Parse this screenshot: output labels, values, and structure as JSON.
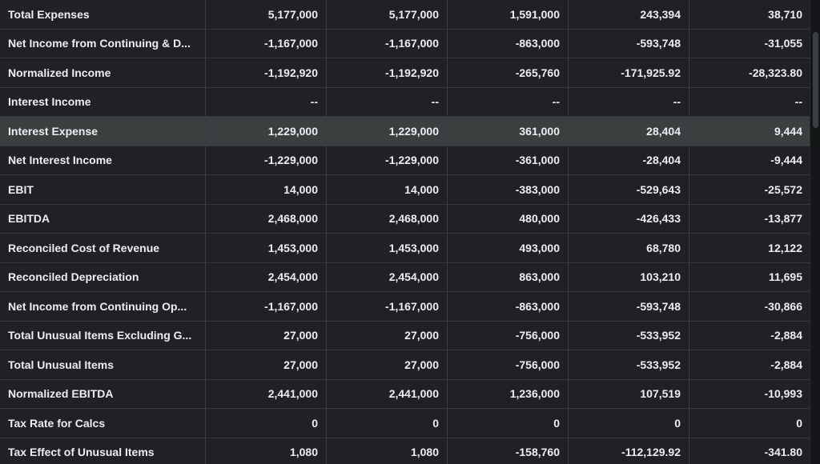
{
  "colors": {
    "background": "#1b1d21",
    "cell": "#1f2125",
    "highlight_row": "#3a403f",
    "text": "#eceef1",
    "border": "#3a3d42"
  },
  "rows": [
    {
      "label": "Total Expenses",
      "values": [
        "5,177,000",
        "5,177,000",
        "1,591,000",
        "243,394",
        "38,710"
      ],
      "highlight": false
    },
    {
      "label": "Net Income from Continuing & D...",
      "values": [
        "-1,167,000",
        "-1,167,000",
        "-863,000",
        "-593,748",
        "-31,055"
      ],
      "highlight": false
    },
    {
      "label": "Normalized Income",
      "values": [
        "-1,192,920",
        "-1,192,920",
        "-265,760",
        "-171,925.92",
        "-28,323.80"
      ],
      "highlight": false
    },
    {
      "label": "Interest Income",
      "values": [
        "--",
        "--",
        "--",
        "--",
        "--"
      ],
      "highlight": false
    },
    {
      "label": "Interest Expense",
      "values": [
        "1,229,000",
        "1,229,000",
        "361,000",
        "28,404",
        "9,444"
      ],
      "highlight": true
    },
    {
      "label": "Net Interest Income",
      "values": [
        "-1,229,000",
        "-1,229,000",
        "-361,000",
        "-28,404",
        "-9,444"
      ],
      "highlight": false
    },
    {
      "label": "EBIT",
      "values": [
        "14,000",
        "14,000",
        "-383,000",
        "-529,643",
        "-25,572"
      ],
      "highlight": false
    },
    {
      "label": "EBITDA",
      "values": [
        "2,468,000",
        "2,468,000",
        "480,000",
        "-426,433",
        "-13,877"
      ],
      "highlight": false
    },
    {
      "label": "Reconciled Cost of Revenue",
      "values": [
        "1,453,000",
        "1,453,000",
        "493,000",
        "68,780",
        "12,122"
      ],
      "highlight": false
    },
    {
      "label": "Reconciled Depreciation",
      "values": [
        "2,454,000",
        "2,454,000",
        "863,000",
        "103,210",
        "11,695"
      ],
      "highlight": false
    },
    {
      "label": "Net Income from Continuing Op...",
      "values": [
        "-1,167,000",
        "-1,167,000",
        "-863,000",
        "-593,748",
        "-30,866"
      ],
      "highlight": false
    },
    {
      "label": "Total Unusual Items Excluding G...",
      "values": [
        "27,000",
        "27,000",
        "-756,000",
        "-533,952",
        "-2,884"
      ],
      "highlight": false
    },
    {
      "label": "Total Unusual Items",
      "values": [
        "27,000",
        "27,000",
        "-756,000",
        "-533,952",
        "-2,884"
      ],
      "highlight": false
    },
    {
      "label": "Normalized EBITDA",
      "values": [
        "2,441,000",
        "2,441,000",
        "1,236,000",
        "107,519",
        "-10,993"
      ],
      "highlight": false
    },
    {
      "label": "Tax Rate for Calcs",
      "values": [
        "0",
        "0",
        "0",
        "0",
        "0"
      ],
      "highlight": false
    },
    {
      "label": "Tax Effect of Unusual Items",
      "values": [
        "1,080",
        "1,080",
        "-158,760",
        "-112,129.92",
        "-341.80"
      ],
      "highlight": false
    }
  ]
}
